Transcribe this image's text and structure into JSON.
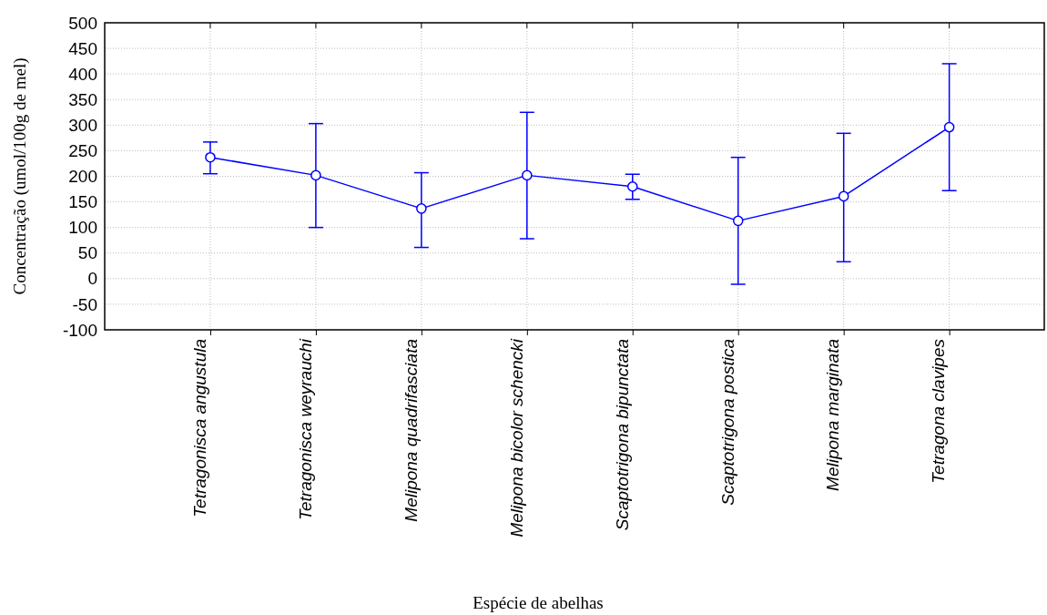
{
  "chart_data": {
    "type": "line",
    "xlabel": "Espécie de abelhas",
    "ylabel": "Concentração  (umol/100g de mel)",
    "categories": [
      "Tetragonisca angustula",
      "Tetragonisca weyrauchi",
      "Melipona quadrifasciata",
      "Melipona bicolor schencki",
      "Scaptotrigona bipunctata",
      "Scaptotrigona postica",
      "Melipona marginata",
      "Tetragona clavipes"
    ],
    "series": [
      {
        "color": "#0000ff",
        "values": [
          237,
          202,
          137,
          202,
          180,
          113,
          161,
          296
        ],
        "errors": [
          [
            205,
            267
          ],
          [
            100,
            303
          ],
          [
            61,
            207
          ],
          [
            78,
            325
          ],
          [
            155,
            204
          ],
          [
            -11,
            237
          ],
          [
            33,
            284
          ],
          [
            172,
            420
          ]
        ]
      }
    ],
    "ylim": [
      -100,
      500
    ],
    "yticks": [
      -100,
      -50,
      0,
      50,
      100,
      150,
      200,
      250,
      300,
      350,
      400,
      450,
      500
    ],
    "grid": true,
    "marker": "circle",
    "line_style": "solid"
  }
}
